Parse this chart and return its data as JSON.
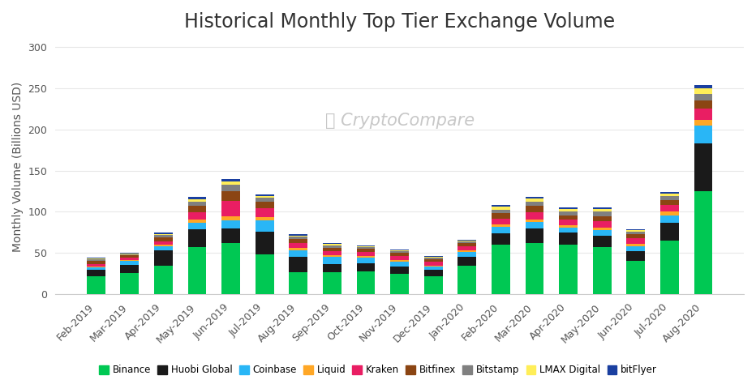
{
  "title": "Historical Monthly Top Tier Exchange Volume",
  "ylabel": "Monthly Volume (Billions USD)",
  "watermark": "Ⓜ CryptoCompare",
  "months": [
    "Feb-2019",
    "Mar-2019",
    "Apr-2019",
    "May-2019",
    "Jun-2019",
    "Jul-2019",
    "Aug-2019",
    "Sep-2019",
    "Oct-2019",
    "Nov-2019",
    "Dec-2019",
    "Jan-2020",
    "Feb-2020",
    "Mar-2020",
    "Apr-2020",
    "May-2020",
    "Jun-2020",
    "Jul-2020",
    "Aug-2020"
  ],
  "exchanges": [
    "Binance",
    "Huobi Global",
    "Coinbase",
    "Liquid",
    "Kraken",
    "Bitfinex",
    "Bitstamp",
    "LMAX Digital",
    "bitFlyer"
  ],
  "colors": [
    "#00c853",
    "#1a1a1a",
    "#29b6f6",
    "#ffa726",
    "#e91e63",
    "#8b4513",
    "#808080",
    "#ffee58",
    "#1a3fa0"
  ],
  "data": {
    "Binance": [
      22,
      26,
      35,
      57,
      62,
      48,
      27,
      27,
      28,
      25,
      22,
      35,
      60,
      62,
      60,
      57,
      40,
      65,
      125
    ],
    "Huobi Global": [
      8,
      10,
      18,
      22,
      18,
      28,
      18,
      10,
      10,
      9,
      8,
      10,
      14,
      18,
      15,
      14,
      12,
      22,
      58
    ],
    "Coinbase": [
      3,
      4,
      5,
      8,
      10,
      14,
      8,
      8,
      6,
      5,
      4,
      6,
      8,
      8,
      6,
      7,
      6,
      9,
      22
    ],
    "Liquid": [
      1,
      1,
      2,
      4,
      5,
      4,
      3,
      2,
      2,
      2,
      1,
      2,
      3,
      3,
      3,
      3,
      3,
      4,
      7
    ],
    "Kraken": [
      3,
      3,
      4,
      8,
      18,
      10,
      6,
      5,
      5,
      5,
      4,
      5,
      7,
      8,
      7,
      8,
      7,
      8,
      13
    ],
    "Bitfinex": [
      3,
      3,
      5,
      8,
      12,
      8,
      5,
      4,
      4,
      4,
      3,
      4,
      6,
      8,
      5,
      6,
      5,
      6,
      10
    ],
    "Bitstamp": [
      2,
      1,
      3,
      5,
      8,
      5,
      3,
      3,
      2,
      2,
      2,
      2,
      4,
      5,
      4,
      5,
      3,
      5,
      8
    ],
    "LMAX Digital": [
      1,
      1,
      1,
      3,
      4,
      2,
      1,
      2,
      1,
      1,
      1,
      1,
      4,
      4,
      3,
      3,
      2,
      3,
      7
    ],
    "bitFlyer": [
      1,
      1,
      2,
      3,
      3,
      2,
      2,
      1,
      1,
      1,
      1,
      1,
      2,
      2,
      2,
      2,
      1,
      2,
      4
    ]
  },
  "ylim": [
    0,
    310
  ],
  "yticks": [
    0,
    50,
    100,
    150,
    200,
    250,
    300
  ],
  "background": "#ffffff",
  "title_fontsize": 17,
  "axis_fontsize": 10,
  "tick_fontsize": 9
}
